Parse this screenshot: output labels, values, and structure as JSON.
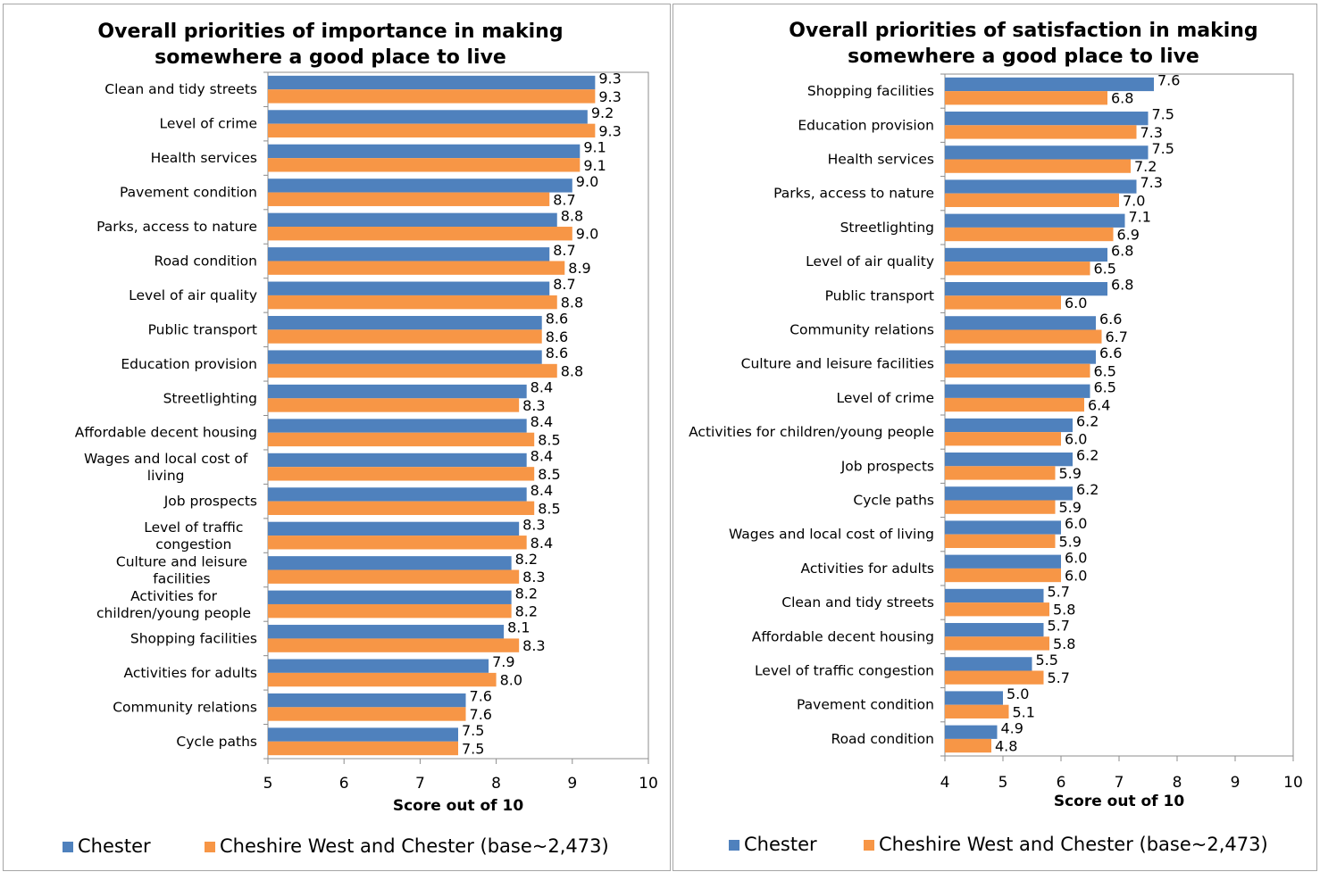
{
  "legend": {
    "series_a": "Chester",
    "series_b": "Cheshire West and Chester (base~2,473)"
  },
  "colors": {
    "series_a": "#4f81bd",
    "series_b": "#f79646",
    "axis": "#8c8c8c"
  },
  "chart_data": [
    {
      "type": "bar",
      "orientation": "horizontal",
      "title": "Overall priorities of importance in making somewhere a good place to live",
      "title_lines": [
        "Overall priorities of importance in making",
        "somewhere a good place to live"
      ],
      "xlabel": "Score out of 10",
      "xlim": [
        5,
        10
      ],
      "xticks": [
        "5",
        "6",
        "7",
        "8",
        "9",
        "10"
      ],
      "grid": false,
      "legend_position": "bottom",
      "categories": [
        "Clean and tidy streets",
        "Level of crime",
        "Health services",
        "Pavement condition",
        "Parks, access to nature",
        "Road condition",
        "Level of air quality",
        "Public transport",
        "Education provision",
        "Streetlighting",
        "Affordable decent housing",
        "Wages and local cost of living",
        "Job prospects",
        "Level of traffic congestion",
        "Culture and leisure facilities",
        "Activities for children/young people",
        "Shopping facilities",
        "Activities for adults",
        "Community relations",
        "Cycle paths"
      ],
      "series": [
        {
          "name": "Chester",
          "values": [
            9.3,
            9.2,
            9.1,
            9.0,
            8.8,
            8.7,
            8.7,
            8.6,
            8.6,
            8.4,
            8.4,
            8.4,
            8.4,
            8.3,
            8.2,
            8.2,
            8.1,
            7.9,
            7.6,
            7.5
          ]
        },
        {
          "name": "Cheshire West and Chester (base~2,473)",
          "values": [
            9.3,
            9.3,
            9.1,
            8.7,
            9.0,
            8.9,
            8.8,
            8.6,
            8.8,
            8.3,
            8.5,
            8.5,
            8.5,
            8.4,
            8.3,
            8.2,
            8.3,
            8.0,
            7.6,
            7.5
          ]
        }
      ]
    },
    {
      "type": "bar",
      "orientation": "horizontal",
      "title": "Overall priorities of satisfaction in making somewhere a good place to live",
      "title_lines": [
        "Overall priorities of satisfaction in making",
        "somewhere a good place to live"
      ],
      "xlabel": "Score out of 10",
      "xlim": [
        4,
        10
      ],
      "xticks": [
        "4",
        "5",
        "6",
        "7",
        "8",
        "9",
        "10"
      ],
      "grid": false,
      "legend_position": "bottom",
      "categories": [
        "Shopping facilities",
        "Education provision",
        "Health services",
        "Parks, access to nature",
        "Streetlighting",
        "Level of air quality",
        "Public transport",
        "Community relations",
        "Culture and leisure facilities",
        "Level of crime",
        "Activities for children/young people",
        "Job prospects",
        "Cycle paths",
        "Wages and local cost of living",
        "Activities for adults",
        "Clean and tidy streets",
        "Affordable decent housing",
        "Level of traffic congestion",
        "Pavement condition",
        "Road condition"
      ],
      "series": [
        {
          "name": "Chester",
          "values": [
            7.6,
            7.5,
            7.5,
            7.3,
            7.1,
            6.8,
            6.8,
            6.6,
            6.6,
            6.5,
            6.2,
            6.2,
            6.2,
            6.0,
            6.0,
            5.7,
            5.7,
            5.5,
            5.0,
            4.9
          ]
        },
        {
          "name": "Cheshire West and Chester (base~2,473)",
          "values": [
            6.8,
            7.3,
            7.2,
            7.0,
            6.9,
            6.5,
            6.0,
            6.7,
            6.5,
            6.4,
            6.0,
            5.9,
            5.9,
            5.9,
            6.0,
            5.8,
            5.8,
            5.7,
            5.1,
            4.8
          ]
        }
      ]
    }
  ]
}
